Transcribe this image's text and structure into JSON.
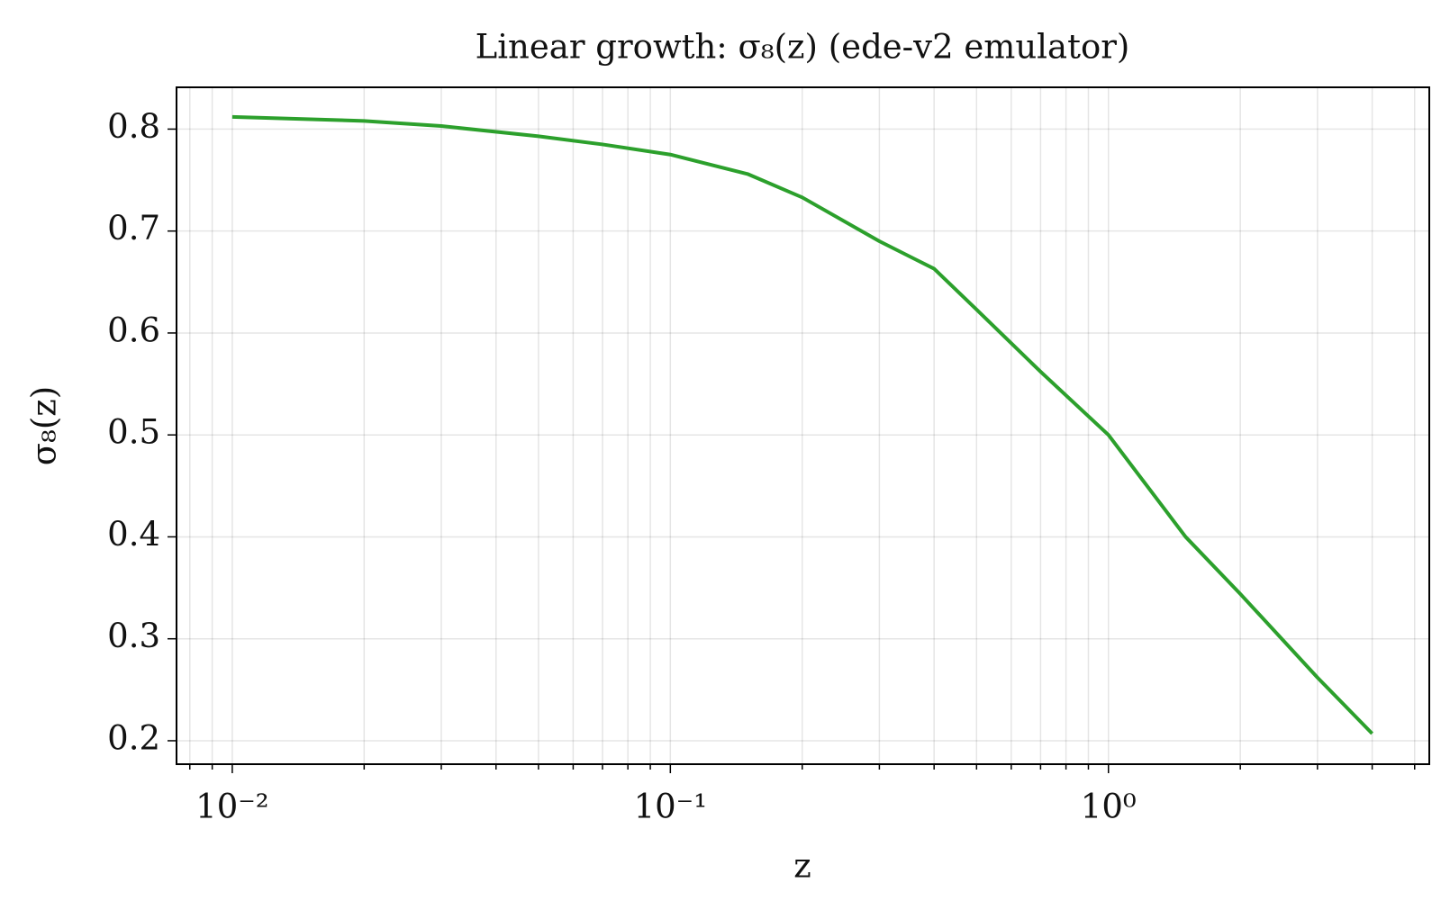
{
  "chart_data": {
    "type": "line",
    "title": "Linear growth: σ₈(z) (ede-v2 emulator)",
    "x_label": "z",
    "y_label": "σ₈(z)",
    "x": [
      0.01,
      0.02,
      0.03,
      0.05,
      0.07,
      0.1,
      0.15,
      0.2,
      0.3,
      0.4,
      0.5,
      0.7,
      1.0,
      1.5,
      2.0,
      3.0,
      4.0
    ],
    "series": [
      {
        "name": "σ₈(z)",
        "color": "#2ca02c",
        "values": [
          0.812,
          0.808,
          0.803,
          0.793,
          0.785,
          0.775,
          0.756,
          0.733,
          0.69,
          0.663,
          0.623,
          0.562,
          0.5,
          0.4,
          0.344,
          0.262,
          0.207
        ]
      }
    ],
    "xscale": "log",
    "xlim": [
      0.00746,
      5.4
    ],
    "xticks": [
      {
        "value": 0.01,
        "label": "10⁻²"
      },
      {
        "value": 0.1,
        "label": "10⁻¹"
      },
      {
        "value": 1,
        "label": "10⁰"
      }
    ],
    "xminorticks": [
      0.008,
      0.009,
      0.02,
      0.03,
      0.04,
      0.05,
      0.06,
      0.07,
      0.08,
      0.09,
      0.2,
      0.3,
      0.4,
      0.5,
      0.6,
      0.7,
      0.8,
      0.9,
      2,
      3,
      4,
      5
    ],
    "ylim": [
      0.177,
      0.841
    ],
    "yticks": [
      0.2,
      0.3,
      0.4,
      0.5,
      0.6,
      0.7,
      0.8
    ],
    "grid": true
  }
}
